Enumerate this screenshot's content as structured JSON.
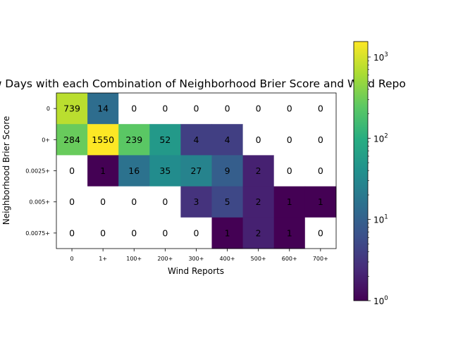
{
  "chart_data": {
    "type": "heatmap",
    "title": "ew Days with each Combination of Neighborhood Brier Score and Wind Repo",
    "xlabel": "Wind Reports",
    "ylabel": "Neighborhood Brier Score",
    "x_categories": [
      "0",
      "1+",
      "100+",
      "200+",
      "300+",
      "400+",
      "500+",
      "600+",
      "700+"
    ],
    "y_categories": [
      "0",
      "0+",
      "0.0025+",
      "0.005+",
      "0.0075+"
    ],
    "values": [
      [
        739,
        14,
        0,
        0,
        0,
        0,
        0,
        0,
        0
      ],
      [
        284,
        1550,
        239,
        52,
        4,
        4,
        0,
        0,
        0
      ],
      [
        0,
        1,
        16,
        35,
        27,
        9,
        2,
        0,
        0
      ],
      [
        0,
        0,
        0,
        0,
        3,
        5,
        2,
        1,
        1
      ],
      [
        0,
        0,
        0,
        0,
        0,
        1,
        2,
        1,
        0
      ]
    ],
    "color_scale": "viridis",
    "log_scale": true,
    "zero_cells_color": "#ffffff",
    "colorbar": {
      "range": [
        1,
        1550
      ],
      "tick_labels": [
        {
          "value": 1,
          "base": "10",
          "exp": "0"
        },
        {
          "value": 10,
          "base": "10",
          "exp": "1"
        },
        {
          "value": 100,
          "base": "10",
          "exp": "2"
        },
        {
          "value": 1000,
          "base": "10",
          "exp": "3"
        }
      ]
    }
  }
}
